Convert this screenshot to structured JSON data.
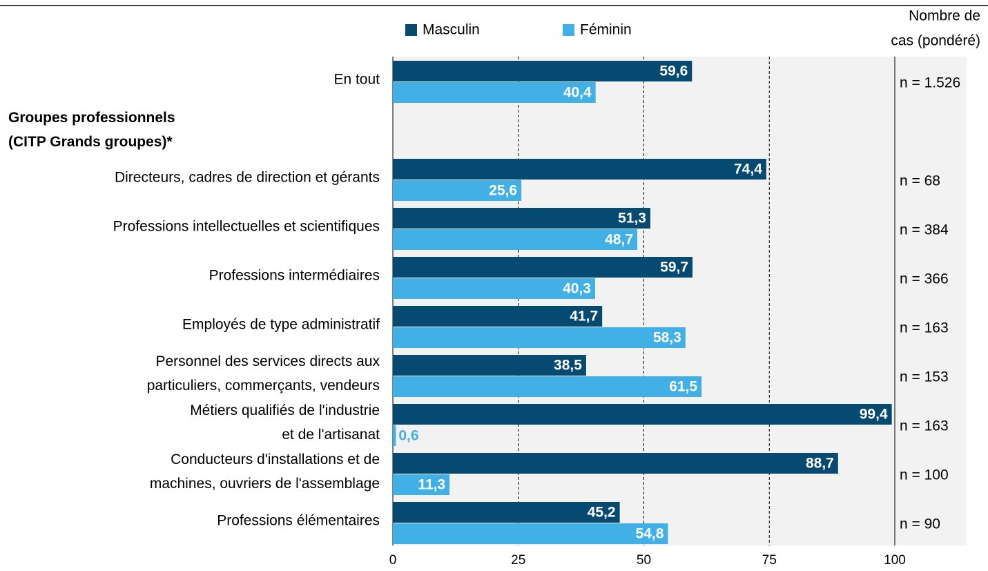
{
  "chart_data": {
    "type": "bar",
    "orientation": "horizontal",
    "categories": [
      [
        "En tout"
      ],
      [
        "Groupes professionnels",
        "(CITP Grands groupes)*"
      ],
      [
        "Directeurs, cadres de direction et gérants"
      ],
      [
        "Professions intellectuelles  et scientifiques"
      ],
      [
        "Professions intermédiaires"
      ],
      [
        "Employés de type administratif"
      ],
      [
        "Personnel des services directs aux",
        "particuliers, commerçants,  vendeurs"
      ],
      [
        "Métiers qualifiés de l'industrie",
        "et de l'artisanat"
      ],
      [
        "Conducteurs d'installations et de",
        "machines, ouvriers de l'assemblage"
      ],
      [
        "Professions élémentaires"
      ]
    ],
    "series": [
      {
        "name": "Masculin",
        "color": "#064a71",
        "values": [
          59.6,
          null,
          74.4,
          51.3,
          59.7,
          41.7,
          38.5,
          99.4,
          88.7,
          45.2
        ],
        "value_labels": [
          "59,6",
          null,
          "74,4",
          "51,3",
          "59,7",
          "41,7",
          "38,5",
          "99,4",
          "88,7",
          "45,2"
        ]
      },
      {
        "name": "Féminin",
        "color": "#41b0e6",
        "values": [
          40.4,
          null,
          25.6,
          48.7,
          40.3,
          58.3,
          61.5,
          0.6,
          11.3,
          54.8
        ],
        "value_labels": [
          "40,4",
          null,
          "25,6",
          "48,7",
          "40,3",
          "58,3",
          "61,5",
          "0,6",
          "11,3",
          "54,8"
        ]
      }
    ],
    "counts_title": [
      "Nombre de",
      "cas (pondéré)"
    ],
    "counts": [
      "n = 1.526",
      null,
      "n = 68",
      "n = 384",
      "n = 366",
      "n = 163",
      "n = 153",
      "n = 163",
      "n = 100",
      "n = 90"
    ],
    "xlim": [
      0,
      100
    ],
    "xticks": [
      0,
      25,
      50,
      75,
      100
    ],
    "grid": true
  }
}
